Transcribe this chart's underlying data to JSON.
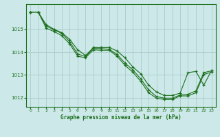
{
  "title": "Graphe pression niveau de la mer (hPa)",
  "background_color": "#cce8e8",
  "grid_color": "#aacccc",
  "line_color": "#1a6e1a",
  "xlim": [
    -0.5,
    23.5
  ],
  "ylim": [
    1011.6,
    1016.1
  ],
  "yticks": [
    1012,
    1013,
    1014,
    1015
  ],
  "xticks": [
    0,
    1,
    2,
    3,
    4,
    5,
    6,
    7,
    8,
    9,
    10,
    11,
    12,
    13,
    14,
    15,
    16,
    17,
    18,
    19,
    20,
    21,
    22,
    23
  ],
  "line1": [
    1015.75,
    1015.75,
    1015.2,
    1015.0,
    1014.85,
    1014.55,
    1014.1,
    1013.85,
    1014.2,
    1014.2,
    1014.2,
    1014.05,
    1013.75,
    1013.35,
    1013.05,
    1012.55,
    1012.25,
    1012.1,
    1012.1,
    1012.2,
    1013.1,
    1013.15,
    1012.55,
    1013.2
  ],
  "line2": [
    1015.75,
    1015.75,
    1015.15,
    1014.97,
    1014.82,
    1014.45,
    1013.92,
    1013.8,
    1014.17,
    1014.15,
    1014.12,
    1013.9,
    1013.52,
    1013.22,
    1012.83,
    1012.35,
    1012.05,
    1011.98,
    1011.98,
    1012.12,
    1012.15,
    1012.3,
    1013.1,
    1013.18
  ],
  "line3": [
    1015.75,
    1015.75,
    1015.05,
    1014.9,
    1014.72,
    1014.35,
    1013.82,
    1013.75,
    1014.1,
    1014.08,
    1014.08,
    1013.82,
    1013.42,
    1013.12,
    1012.72,
    1012.22,
    1011.98,
    1011.92,
    1011.92,
    1012.08,
    1012.08,
    1012.22,
    1013.02,
    1013.12
  ]
}
